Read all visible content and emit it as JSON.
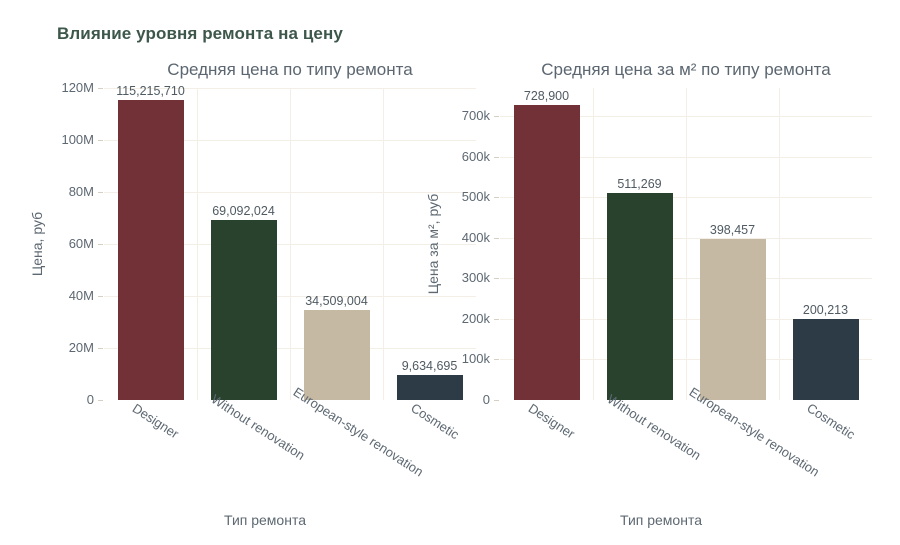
{
  "page": {
    "title": "Влияние уровня ремонта на цену"
  },
  "style": {
    "page_title_color": "#3e574b",
    "chart_title_color": "#5b6670",
    "tick_label_color": "#5d6872",
    "value_label_color": "#4f5a62",
    "axis_title_color": "#5d6872",
    "grid_color": "#f3efe6",
    "tick_mark_color": "#d6d0c4",
    "background": "#ffffff",
    "bar_colors": [
      "#713137",
      "#28422e",
      "#c5b9a3",
      "#2d3b46"
    ]
  },
  "chart_data": [
    {
      "type": "bar",
      "title": "Средняя цена по типу ремонта",
      "xlabel": "Тип ремонта",
      "ylabel": "Цена, руб",
      "categories": [
        "Designer",
        "Without renovation",
        "European-style renovation",
        "Cosmetic"
      ],
      "values": [
        115215710,
        69092024,
        34509004,
        9634695
      ],
      "value_labels": [
        "115,215,710",
        "69,092,024",
        "34,509,004",
        "9,634,695"
      ],
      "bar_colors": [
        "#713137",
        "#28422e",
        "#c5b9a3",
        "#2d3b46"
      ],
      "ylim": [
        0,
        120000000
      ],
      "yticks": [
        {
          "v": 0,
          "label": "0"
        },
        {
          "v": 20000000,
          "label": "20M"
        },
        {
          "v": 40000000,
          "label": "40M"
        },
        {
          "v": 60000000,
          "label": "60M"
        },
        {
          "v": 80000000,
          "label": "80M"
        },
        {
          "v": 100000000,
          "label": "100M"
        },
        {
          "v": 120000000,
          "label": "120M"
        }
      ],
      "grid": true,
      "legend": "none"
    },
    {
      "type": "bar",
      "title": "Средняя цена за м² по типу ремонта",
      "xlabel": "Тип ремонта",
      "ylabel": "Цена за м², руб",
      "categories": [
        "Designer",
        "Without renovation",
        "European-style renovation",
        "Cosmetic"
      ],
      "values": [
        728900,
        511269,
        398457,
        200213
      ],
      "value_labels": [
        "728,900",
        "511,269",
        "398,457",
        "200,213"
      ],
      "bar_colors": [
        "#713137",
        "#28422e",
        "#c5b9a3",
        "#2d3b46"
      ],
      "ylim": [
        0,
        770000
      ],
      "yticks": [
        {
          "v": 0,
          "label": "0"
        },
        {
          "v": 100000,
          "label": "100k"
        },
        {
          "v": 200000,
          "label": "200k"
        },
        {
          "v": 300000,
          "label": "300k"
        },
        {
          "v": 400000,
          "label": "400k"
        },
        {
          "v": 500000,
          "label": "500k"
        },
        {
          "v": 600000,
          "label": "600k"
        },
        {
          "v": 700000,
          "label": "700k"
        }
      ],
      "grid": true,
      "legend": "none"
    }
  ]
}
